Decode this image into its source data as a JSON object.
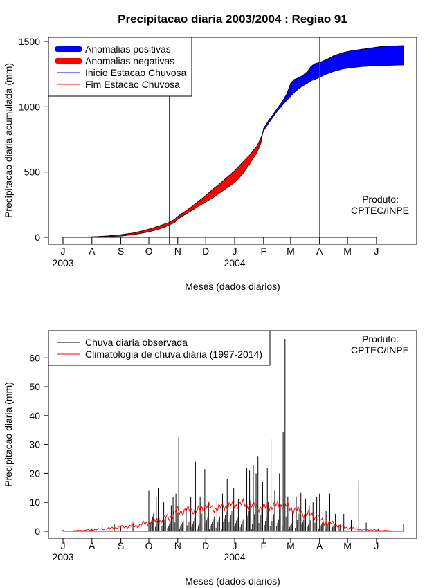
{
  "chart_data": [
    {
      "type": "area",
      "title": "Precipitacao diaria 2003/2004 : Regiao 91",
      "xlabel": "Meses (dados diarios)",
      "ylabel": "Precipitacao diaria acumulada (mm)",
      "ylim": [
        0,
        1500
      ],
      "yticks": [
        0,
        500,
        1000,
        1500
      ],
      "xlim": [
        0,
        365
      ],
      "month_ticks": [
        {
          "label": "J",
          "day": 0
        },
        {
          "label": "A",
          "day": 31
        },
        {
          "label": "S",
          "day": 62
        },
        {
          "label": "O",
          "day": 92
        },
        {
          "label": "N",
          "day": 123
        },
        {
          "label": "D",
          "day": 153
        },
        {
          "label": "J",
          "day": 184
        },
        {
          "label": "F",
          "day": 215
        },
        {
          "label": "M",
          "day": 244
        },
        {
          "label": "A",
          "day": 275
        },
        {
          "label": "M",
          "day": 305
        },
        {
          "label": "J",
          "day": 336
        }
      ],
      "year_labels": [
        {
          "label": "2003",
          "day": 0
        },
        {
          "label": "2004",
          "day": 184
        }
      ],
      "legend_position": "top-left",
      "legend": [
        {
          "label": "Anomalias positivas",
          "color": "#0000ff",
          "kind": "thick"
        },
        {
          "label": "Anomalias negativas",
          "color": "#ff0000",
          "kind": "thick"
        },
        {
          "label": "Inicio Estacao Chuvosa",
          "color": "#0000ff",
          "kind": "thin"
        },
        {
          "label": "Fim Estacao Chuvosa",
          "color": "#ff0000",
          "kind": "thin"
        }
      ],
      "annotation": [
        "Produto:",
        "CPTEC/INPE"
      ],
      "vlines": [
        {
          "name": "Inicio Estacao Chuvosa",
          "day": 114,
          "color": "#0000ff"
        },
        {
          "name": "Fim Estacao Chuvosa",
          "day": 275,
          "color": "#ff0000"
        }
      ],
      "observed_cumulative": {
        "x": [
          0,
          31,
          46,
          62,
          77,
          92,
          100,
          108,
          114,
          120,
          123,
          130,
          138,
          145,
          153,
          160,
          168,
          176,
          184,
          192,
          200,
          208,
          212,
          215,
          220,
          225,
          230,
          235,
          240,
          244,
          248,
          252,
          257,
          262,
          266,
          270,
          275,
          282,
          290,
          300,
          310,
          320,
          330,
          340,
          350,
          365
        ],
        "y": [
          0,
          2,
          5,
          10,
          22,
          42,
          57,
          75,
          95,
          115,
          140,
          170,
          205,
          238,
          270,
          300,
          340,
          380,
          420,
          480,
          560,
          650,
          720,
          835,
          890,
          940,
          990,
          1040,
          1100,
          1180,
          1210,
          1220,
          1240,
          1270,
          1310,
          1330,
          1340,
          1360,
          1390,
          1415,
          1430,
          1440,
          1450,
          1460,
          1465,
          1468
        ]
      },
      "climatology_cumulative": {
        "x": [
          0,
          31,
          46,
          62,
          77,
          92,
          100,
          108,
          114,
          120,
          123,
          130,
          138,
          145,
          153,
          160,
          168,
          176,
          184,
          192,
          200,
          208,
          212,
          215,
          220,
          225,
          230,
          235,
          240,
          244,
          248,
          252,
          257,
          262,
          266,
          270,
          275,
          282,
          290,
          300,
          310,
          320,
          330,
          340,
          350,
          365
        ],
        "y": [
          0,
          4,
          10,
          20,
          35,
          62,
          80,
          100,
          115,
          140,
          160,
          195,
          235,
          275,
          320,
          365,
          410,
          460,
          510,
          570,
          630,
          700,
          760,
          815,
          870,
          920,
          970,
          1010,
          1050,
          1080,
          1110,
          1135,
          1160,
          1180,
          1200,
          1210,
          1225,
          1250,
          1270,
          1290,
          1300,
          1308,
          1312,
          1316,
          1318,
          1320
        ]
      }
    },
    {
      "type": "bar",
      "xlabel": "Meses (dados diarios)",
      "ylabel": "Precipitacao diaria (mm)",
      "ylim": [
        0,
        67
      ],
      "yticks": [
        0,
        10,
        20,
        30,
        40,
        50,
        60
      ],
      "xlim": [
        0,
        365
      ],
      "legend_position": "top-left",
      "legend": [
        {
          "label": "Chuva diaria observada",
          "color": "#000000"
        },
        {
          "label": "Climatologia de chuva diária (1997-2014)",
          "color": "#ff0000"
        }
      ],
      "annotation": [
        "Produto:",
        "CPTEC/INPE"
      ],
      "observed_daily": {
        "spikes": [
          {
            "day": 0,
            "value": 0.5
          },
          {
            "day": 31,
            "value": 1
          },
          {
            "day": 42,
            "value": 2.5
          },
          {
            "day": 55,
            "value": 2.5
          },
          {
            "day": 62,
            "value": 2
          },
          {
            "day": 75,
            "value": 3
          },
          {
            "day": 92,
            "value": 14
          },
          {
            "day": 100,
            "value": 12
          },
          {
            "day": 102,
            "value": 15
          },
          {
            "day": 108,
            "value": 10
          },
          {
            "day": 116,
            "value": 9
          },
          {
            "day": 118,
            "value": 12
          },
          {
            "day": 121,
            "value": 13
          },
          {
            "day": 124,
            "value": 32.5
          },
          {
            "day": 132,
            "value": 8
          },
          {
            "day": 137,
            "value": 12
          },
          {
            "day": 142,
            "value": 24
          },
          {
            "day": 147,
            "value": 12
          },
          {
            "day": 152,
            "value": 21.5
          },
          {
            "day": 156,
            "value": 10
          },
          {
            "day": 165,
            "value": 11
          },
          {
            "day": 171,
            "value": 13
          },
          {
            "day": 176,
            "value": 18
          },
          {
            "day": 183,
            "value": 15
          },
          {
            "day": 188,
            "value": 11
          },
          {
            "day": 194,
            "value": 16
          },
          {
            "day": 197,
            "value": 22
          },
          {
            "day": 200,
            "value": 21
          },
          {
            "day": 204,
            "value": 23
          },
          {
            "day": 207,
            "value": 20
          },
          {
            "day": 209,
            "value": 26
          },
          {
            "day": 214,
            "value": 17
          },
          {
            "day": 219,
            "value": 22
          },
          {
            "day": 223,
            "value": 32
          },
          {
            "day": 227,
            "value": 14
          },
          {
            "day": 232,
            "value": 20
          },
          {
            "day": 236,
            "value": 34.5
          },
          {
            "day": 238,
            "value": 66.5
          },
          {
            "day": 241,
            "value": 12
          },
          {
            "day": 246,
            "value": 7
          },
          {
            "day": 250,
            "value": 12
          },
          {
            "day": 255,
            "value": 13.5
          },
          {
            "day": 260,
            "value": 11
          },
          {
            "day": 264,
            "value": 9
          },
          {
            "day": 268,
            "value": 10
          },
          {
            "day": 272,
            "value": 12
          },
          {
            "day": 275,
            "value": 13
          },
          {
            "day": 282,
            "value": 7
          },
          {
            "day": 286,
            "value": 13
          },
          {
            "day": 292,
            "value": 6
          },
          {
            "day": 301,
            "value": 6
          },
          {
            "day": 309,
            "value": 4
          },
          {
            "day": 317,
            "value": 17.5
          },
          {
            "day": 325,
            "value": 3
          },
          {
            "day": 338,
            "value": 1
          },
          {
            "day": 365,
            "value": 2.5
          }
        ]
      },
      "climatology_daily": {
        "x": [
          0,
          31,
          50,
          62,
          80,
          92,
          105,
          114,
          123,
          130,
          138,
          145,
          153,
          160,
          168,
          176,
          184,
          192,
          200,
          208,
          215,
          222,
          230,
          238,
          244,
          252,
          260,
          268,
          275,
          282,
          290,
          300,
          310,
          320,
          330,
          340,
          350,
          365
        ],
        "y": [
          0,
          0.5,
          1,
          1.5,
          2,
          3,
          4,
          5,
          7,
          7,
          7.5,
          7,
          9,
          8,
          8,
          9,
          9,
          9.5,
          9,
          8.5,
          8,
          8.5,
          9,
          9,
          8,
          7,
          6,
          5.5,
          4,
          3,
          2.5,
          1.5,
          1,
          0.5,
          0.5,
          0.3,
          0.2,
          0
        ]
      }
    }
  ]
}
